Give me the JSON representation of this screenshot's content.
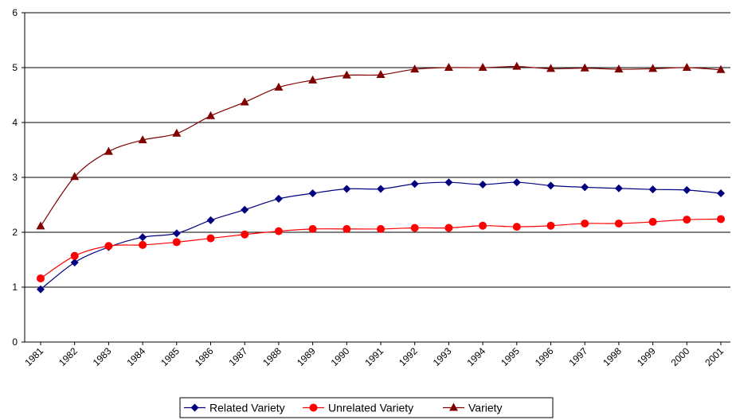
{
  "chart_data": {
    "type": "line",
    "title": "",
    "xlabel": "",
    "ylabel": "",
    "ylim": [
      0,
      6
    ],
    "yticks": [
      0,
      1,
      2,
      3,
      4,
      5,
      6
    ],
    "grid": "horizontal",
    "legend_position": "bottom",
    "categories": [
      "1981",
      "1982",
      "1983",
      "1984",
      "1985",
      "1986",
      "1987",
      "1988",
      "1989",
      "1990",
      "1991",
      "1992",
      "1993",
      "1994",
      "1995",
      "1996",
      "1997",
      "1998",
      "1999",
      "2000",
      "2001"
    ],
    "series": [
      {
        "name": "Related Variety",
        "color": "#000080",
        "marker": "diamond",
        "values": [
          0.96,
          1.45,
          1.73,
          1.91,
          1.98,
          2.22,
          2.41,
          2.61,
          2.71,
          2.79,
          2.79,
          2.88,
          2.91,
          2.87,
          2.91,
          2.85,
          2.82,
          2.8,
          2.78,
          2.77,
          2.71
        ]
      },
      {
        "name": "Unrelated Variety",
        "color": "#ff0000",
        "marker": "circle",
        "values": [
          1.16,
          1.57,
          1.75,
          1.77,
          1.82,
          1.89,
          1.96,
          2.02,
          2.06,
          2.06,
          2.06,
          2.08,
          2.08,
          2.12,
          2.1,
          2.12,
          2.16,
          2.16,
          2.19,
          2.23,
          2.24
        ]
      },
      {
        "name": "Variety",
        "color": "#800000",
        "marker": "triangle",
        "values": [
          2.11,
          3.01,
          3.47,
          3.68,
          3.8,
          4.12,
          4.37,
          4.64,
          4.77,
          4.86,
          4.87,
          4.97,
          5.0,
          5.0,
          5.02,
          4.98,
          4.99,
          4.97,
          4.98,
          5.0,
          4.96
        ]
      }
    ]
  }
}
